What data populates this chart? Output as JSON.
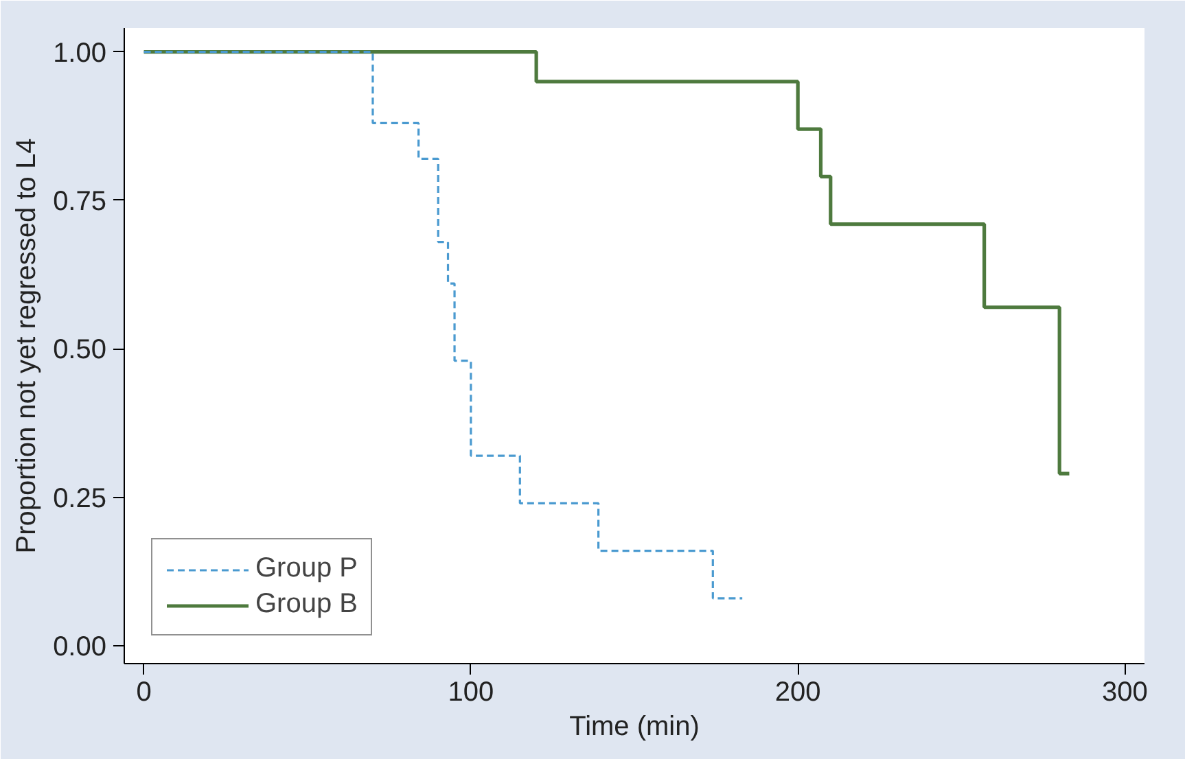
{
  "chart_data": {
    "type": "step",
    "xlabel": "Time (min)",
    "ylabel": "Proportion not yet regressed to L4",
    "xlim": [
      -6,
      306
    ],
    "ylim": [
      -0.03,
      1.04
    ],
    "xticks": [
      0,
      100,
      200,
      300
    ],
    "yticks": [
      {
        "value": 0,
        "label": "0.00"
      },
      {
        "value": 0.25,
        "label": "0.25"
      },
      {
        "value": 0.5,
        "label": "0.50"
      },
      {
        "value": 0.75,
        "label": "0.75"
      },
      {
        "value": 1,
        "label": "1.00"
      }
    ],
    "grid": false,
    "legend": "bottom left",
    "series": [
      {
        "name": "Group P",
        "color": "#4a9ad0",
        "line_style": "dashed",
        "x": [
          0,
          70,
          84,
          90,
          93,
          95,
          100,
          115,
          139,
          174,
          183
        ],
        "values": [
          1,
          0.88,
          0.82,
          0.68,
          0.61,
          0.48,
          0.32,
          0.24,
          0.16,
          0.08,
          0.08
        ]
      },
      {
        "name": "Group B",
        "color": "#4e7a3e",
        "line_style": "solid",
        "x": [
          0,
          120,
          200,
          207,
          210,
          257,
          280,
          283
        ],
        "values": [
          1,
          0.95,
          0.87,
          0.79,
          0.71,
          0.57,
          0.29,
          0.29
        ]
      }
    ]
  }
}
